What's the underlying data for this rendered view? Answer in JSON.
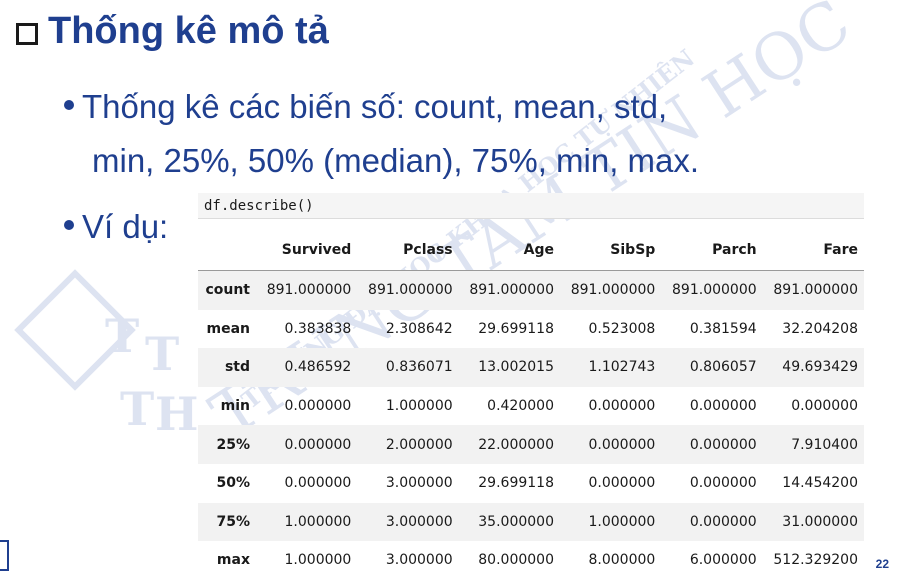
{
  "slide": {
    "title": "Thống kê mô tả",
    "bullets": [
      "Thống kê các biến số: count, mean, std,",
      "min, 25%, 50% (median), 75%, min, max.",
      "Ví dụ:"
    ],
    "page_number": "22",
    "watermark": {
      "arc_text": "TRƯỜNG ĐẠI HỌC KHOA HỌC TỰ NHIÊN",
      "big_text": "TRUNG TÂM TIN HỌC",
      "logo_letters": [
        "T",
        "T",
        "T",
        "H"
      ]
    }
  },
  "code": "df.describe()",
  "table": {
    "columns": [
      "",
      "Survived",
      "Pclass",
      "Age",
      "SibSp",
      "Parch",
      "Fare"
    ],
    "rows": [
      {
        "label": "count",
        "values": [
          "891.000000",
          "891.000000",
          "891.000000",
          "891.000000",
          "891.000000",
          "891.000000"
        ]
      },
      {
        "label": "mean",
        "values": [
          "0.383838",
          "2.308642",
          "29.699118",
          "0.523008",
          "0.381594",
          "32.204208"
        ]
      },
      {
        "label": "std",
        "values": [
          "0.486592",
          "0.836071",
          "13.002015",
          "1.102743",
          "0.806057",
          "49.693429"
        ]
      },
      {
        "label": "min",
        "values": [
          "0.000000",
          "1.000000",
          "0.420000",
          "0.000000",
          "0.000000",
          "0.000000"
        ]
      },
      {
        "label": "25%",
        "values": [
          "0.000000",
          "2.000000",
          "22.000000",
          "0.000000",
          "0.000000",
          "7.910400"
        ]
      },
      {
        "label": "50%",
        "values": [
          "0.000000",
          "3.000000",
          "29.699118",
          "0.000000",
          "0.000000",
          "14.454200"
        ]
      },
      {
        "label": "75%",
        "values": [
          "1.000000",
          "3.000000",
          "35.000000",
          "1.000000",
          "0.000000",
          "31.000000"
        ]
      },
      {
        "label": "max",
        "values": [
          "1.000000",
          "3.000000",
          "80.000000",
          "8.000000",
          "6.000000",
          "512.329200"
        ]
      }
    ]
  }
}
